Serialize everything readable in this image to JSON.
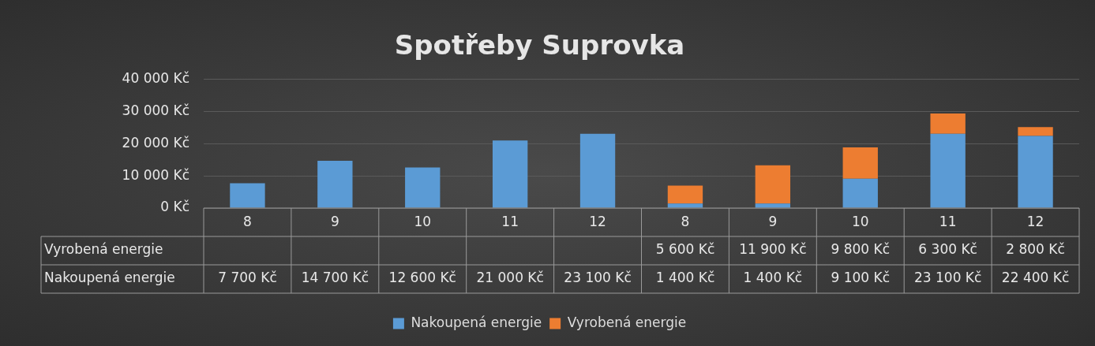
{
  "chart_data": {
    "type": "bar",
    "title": "Spotřeby Suprovka",
    "stacked": true,
    "categories": [
      "8",
      "9",
      "10",
      "11",
      "12",
      "8",
      "9",
      "10",
      "11",
      "12"
    ],
    "series": [
      {
        "name": "Nakoupená energie",
        "color": "#5b9bd5",
        "values": [
          7700,
          14700,
          12600,
          21000,
          23100,
          1400,
          1400,
          9100,
          23100,
          22400
        ],
        "value_labels": [
          "7 700 Kč",
          "14 700 Kč",
          "12 600 Kč",
          "21 000 Kč",
          "23 100 Kč",
          "1 400 Kč",
          "1 400 Kč",
          "9 100 Kč",
          "23 100 Kč",
          "22 400 Kč"
        ]
      },
      {
        "name": "Vyrobená energie",
        "color": "#ed7d31",
        "values": [
          null,
          null,
          null,
          null,
          null,
          5600,
          11900,
          9800,
          6300,
          2800
        ],
        "value_labels": [
          null,
          null,
          null,
          null,
          null,
          "5 600 Kč",
          "11 900 Kč",
          "9 800 Kč",
          "6 300 Kč",
          "2 800 Kč"
        ]
      }
    ],
    "ylim": [
      0,
      40000
    ],
    "yticks": [
      {
        "value": 0,
        "label": "0 Kč"
      },
      {
        "value": 10000,
        "label": "10 000 Kč"
      },
      {
        "value": 20000,
        "label": "20 000 Kč"
      },
      {
        "value": 30000,
        "label": "30 000 Kč"
      },
      {
        "value": 40000,
        "label": "40 000 Kč"
      }
    ],
    "grid": "y",
    "legend": "bottom"
  }
}
